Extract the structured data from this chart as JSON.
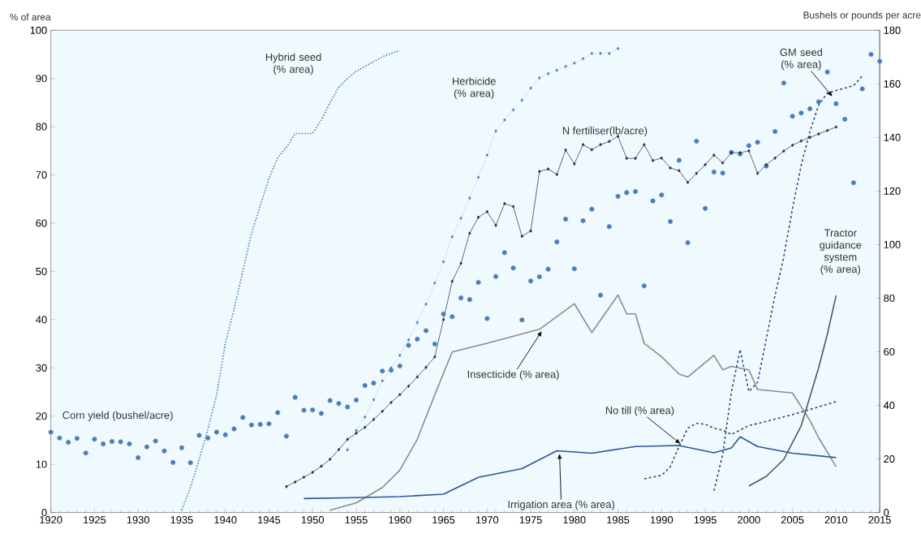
{
  "chart_data": {
    "type": "line",
    "ylabel": "% of area",
    "y2label": "Bushels or pounds per acre",
    "xlim": [
      1920,
      2015
    ],
    "xticks": [
      1920,
      1925,
      1930,
      1935,
      1940,
      1945,
      1950,
      1955,
      1960,
      1965,
      1970,
      1975,
      1980,
      1985,
      1990,
      1995,
      2000,
      2005,
      2010,
      2015
    ],
    "ylim": [
      0,
      100
    ],
    "yticks": [
      0,
      10,
      20,
      30,
      40,
      50,
      60,
      70,
      80,
      90,
      100
    ],
    "y2lim": [
      0,
      180
    ],
    "y2ticks": [
      0,
      20,
      40,
      60,
      80,
      100,
      120,
      140,
      160,
      180
    ],
    "grid": false,
    "series": [
      {
        "name": "Corn yield (bushel/acre)",
        "type": "scatter",
        "axis": "y2",
        "marker": "circle",
        "color": "#4a7ebb",
        "x": [
          1920,
          1921,
          1922,
          1923,
          1924,
          1925,
          1926,
          1927,
          1928,
          1929,
          1930,
          1931,
          1932,
          1933,
          1934,
          1935,
          1936,
          1937,
          1938,
          1939,
          1940,
          1941,
          1942,
          1943,
          1944,
          1945,
          1946,
          1947,
          1948,
          1949,
          1950,
          1951,
          1952,
          1953,
          1954,
          1955,
          1956,
          1957,
          1958,
          1959,
          1960,
          1961,
          1962,
          1963,
          1964,
          1965,
          1966,
          1967,
          1968,
          1969,
          1970,
          1971,
          1972,
          1973,
          1974,
          1975,
          1976,
          1977,
          1978,
          1979,
          1980,
          1981,
          1982,
          1983,
          1984,
          1985,
          1986,
          1987,
          1988,
          1989,
          1990,
          1991,
          1992,
          1993,
          1994,
          1995,
          1996,
          1997,
          1998,
          1999,
          2000,
          2001,
          2002,
          2003,
          2004,
          2005,
          2006,
          2007,
          2008,
          2009,
          2010,
          2011,
          2012,
          2013,
          2014,
          2015
        ],
        "values": [
          30,
          27.8,
          26.2,
          27.7,
          22.2,
          27.4,
          25.6,
          26.5,
          26.4,
          25.6,
          20.5,
          24.5,
          26.7,
          23,
          18.7,
          24.2,
          18.6,
          28.8,
          27.8,
          30,
          29,
          31.2,
          35.5,
          32.7,
          32.9,
          33.1,
          37.3,
          28.5,
          43,
          38.2,
          38.3,
          37,
          41.8,
          40.7,
          39.4,
          42,
          47.4,
          48.3,
          52.8,
          53.1,
          54.7,
          62.4,
          64.7,
          67.9,
          62.9,
          74.1,
          73.1,
          80.1,
          79.5,
          85.9,
          72.4,
          88.1,
          97,
          91.3,
          71.9,
          86.4,
          88,
          90.8,
          101,
          109.5,
          91,
          108.9,
          113.2,
          81.1,
          106.7,
          118,
          119.4,
          119.8,
          84.6,
          116.3,
          118.5,
          108.6,
          131.5,
          100.7,
          138.6,
          113.5,
          127.1,
          126.7,
          134.4,
          133.8,
          136.9,
          138.2,
          129.3,
          142.2,
          160.3,
          147.9,
          149.1,
          150.7,
          153.3,
          164.4,
          152.6,
          146.8,
          123.1,
          158.1,
          171,
          168.4
        ]
      },
      {
        "name": "Hybrid seed (% area)",
        "line_style": "dotted",
        "marker": "none",
        "color": "#4a7ebb",
        "x": [
          1935,
          1936,
          1937,
          1938,
          1939,
          1940,
          1941,
          1942,
          1943,
          1944,
          1945,
          1946,
          1947,
          1948,
          1949,
          1950,
          1951,
          1952,
          1953,
          1954,
          1955,
          1956,
          1957,
          1958,
          1959,
          1960
        ],
        "values": [
          0.5,
          5.2,
          11,
          17.3,
          24.4,
          35.1,
          42.2,
          50,
          57.9,
          63.6,
          69.3,
          73.6,
          75.7,
          78.6,
          78.6,
          78.6,
          81.4,
          85,
          88.2,
          90,
          91.5,
          92.5,
          93.5,
          94.5,
          95.2,
          95.8
        ]
      },
      {
        "name": "Herbicide (% area)",
        "line_style": "dotted",
        "marker": "diamond",
        "color": "#4a7ebb",
        "x": [
          1954,
          1955,
          1956,
          1957,
          1958,
          1959,
          1960,
          1961,
          1962,
          1963,
          1964,
          1965,
          1966,
          1967,
          1968,
          1969,
          1970,
          1971,
          1972,
          1973,
          1974,
          1975,
          1976,
          1977,
          1978,
          1979,
          1980,
          1981,
          1982,
          1983,
          1984,
          1985
        ],
        "values": [
          13,
          17,
          19.8,
          23.4,
          27.3,
          30,
          32.6,
          35.8,
          39.4,
          43.2,
          47.6,
          52,
          57.2,
          61,
          65.2,
          69.5,
          74.1,
          79.1,
          81.4,
          83.5,
          85.5,
          88,
          90.1,
          91,
          91.7,
          92.5,
          93.2,
          94.1,
          95.2,
          95.2,
          95.2,
          96.2
        ]
      },
      {
        "name": "N fertiliser(lb/acre)",
        "axis": "y2",
        "line_style": "solid",
        "marker": "diamond",
        "color": "#1b2a4a",
        "x": [
          1947,
          1948,
          1949,
          1950,
          1951,
          1952,
          1953,
          1954,
          1955,
          1956,
          1957,
          1958,
          1959,
          1960,
          1961,
          1962,
          1963,
          1964,
          1965,
          1966,
          1967,
          1968,
          1969,
          1970,
          1971,
          1972,
          1973,
          1974,
          1975,
          1976,
          1977,
          1978,
          1979,
          1980,
          1981,
          1982,
          1983,
          1984,
          1985,
          1986,
          1987,
          1988,
          1989,
          1990,
          1991,
          1992,
          1993,
          1994,
          1995,
          1996,
          1997,
          1998,
          1999,
          2000,
          2001,
          2002,
          2003,
          2004,
          2005,
          2006,
          2007,
          2008,
          2009,
          2010
        ],
        "values": [
          9.7,
          11.4,
          13.2,
          15,
          17.3,
          19.9,
          23.5,
          27.3,
          29.6,
          31.8,
          34.7,
          37.8,
          41.1,
          44,
          47.2,
          50.6,
          54.2,
          58.1,
          72,
          86.3,
          93,
          104.2,
          110.2,
          112.3,
          107.2,
          115.3,
          114.2,
          103.1,
          105.1,
          127.3,
          128.2,
          126.2,
          135.3,
          130.1,
          137.3,
          135.4,
          137.3,
          138.5,
          140.4,
          132.2,
          132.2,
          137.3,
          131.4,
          132.3,
          128.6,
          127.6,
          123.2,
          126.6,
          129.8,
          133.4,
          130.5,
          134.3,
          134.3,
          135,
          126.6,
          129.8,
          132.3,
          134.9,
          137.1,
          138.7,
          140,
          141.3,
          142.6,
          143.9
        ]
      },
      {
        "name": "Insecticide (% area)",
        "line_style": "solid",
        "marker": "none",
        "color": "#8c8c8c",
        "x": [
          1952,
          1955,
          1958,
          1960,
          1962,
          1964,
          1966,
          1970,
          1976,
          1980,
          1982,
          1985,
          1986,
          1987,
          1988,
          1990,
          1992,
          1993,
          1996,
          1997,
          1998,
          2000,
          2001,
          2005,
          2007,
          2008,
          2010
        ],
        "values": [
          0.5,
          2,
          5.2,
          8.8,
          15.2,
          24.4,
          33.3,
          35.1,
          38,
          43.3,
          37.3,
          45.1,
          41.2,
          41.2,
          35.1,
          32.3,
          28.7,
          28.1,
          32.6,
          29.6,
          30.3,
          29.6,
          25.5,
          24.8,
          19.1,
          15.5,
          9.5
        ]
      },
      {
        "name": "Irrigation area (% area)",
        "line_style": "solid",
        "marker": "none",
        "color": "#2e5597",
        "x": [
          1949,
          1955,
          1960,
          1965,
          1969,
          1974,
          1978,
          1982,
          1987,
          1992,
          1996,
          1998,
          1999,
          2001,
          2005,
          2010
        ],
        "values": [
          2.9,
          3.1,
          3.3,
          3.8,
          7.3,
          9.1,
          12.8,
          12.3,
          13.7,
          13.9,
          12.4,
          13.4,
          15.7,
          13.7,
          12.3,
          11.4
        ]
      },
      {
        "name": "No till (% area)",
        "line_style": "dashed",
        "marker": "none",
        "color": "#2e4a7e",
        "x": [
          1988,
          1990,
          1991,
          1992,
          1993,
          1994,
          1995,
          1996,
          1997,
          1998,
          2000,
          2005,
          2010
        ],
        "values": [
          7,
          7.7,
          9.5,
          13.7,
          17.5,
          18.5,
          18.3,
          17.5,
          17.1,
          16.2,
          18,
          20.3,
          23
        ]
      },
      {
        "name": "GM seed (% area)",
        "line_style": "dashed",
        "marker": "none",
        "color": "#2e4a7e",
        "x": [
          1996,
          1997,
          1998,
          1999,
          2000,
          2001,
          2002,
          2003,
          2004,
          2005,
          2006,
          2007,
          2008,
          2009,
          2010,
          2011,
          2012,
          2013
        ],
        "values": [
          4.5,
          12,
          25,
          33.8,
          25.1,
          27,
          36,
          45,
          53,
          63,
          72,
          79,
          84.5,
          87,
          87.5,
          88,
          88.5,
          90.5
        ]
      },
      {
        "name": "Tractor guidance system (% area)",
        "line_style": "solid",
        "marker": "none",
        "color": "#555555",
        "x": [
          2000,
          2002,
          2004,
          2006,
          2007,
          2008,
          2009,
          2010
        ],
        "values": [
          5.5,
          7.5,
          11,
          18,
          24,
          30,
          37,
          45
        ]
      }
    ]
  }
}
